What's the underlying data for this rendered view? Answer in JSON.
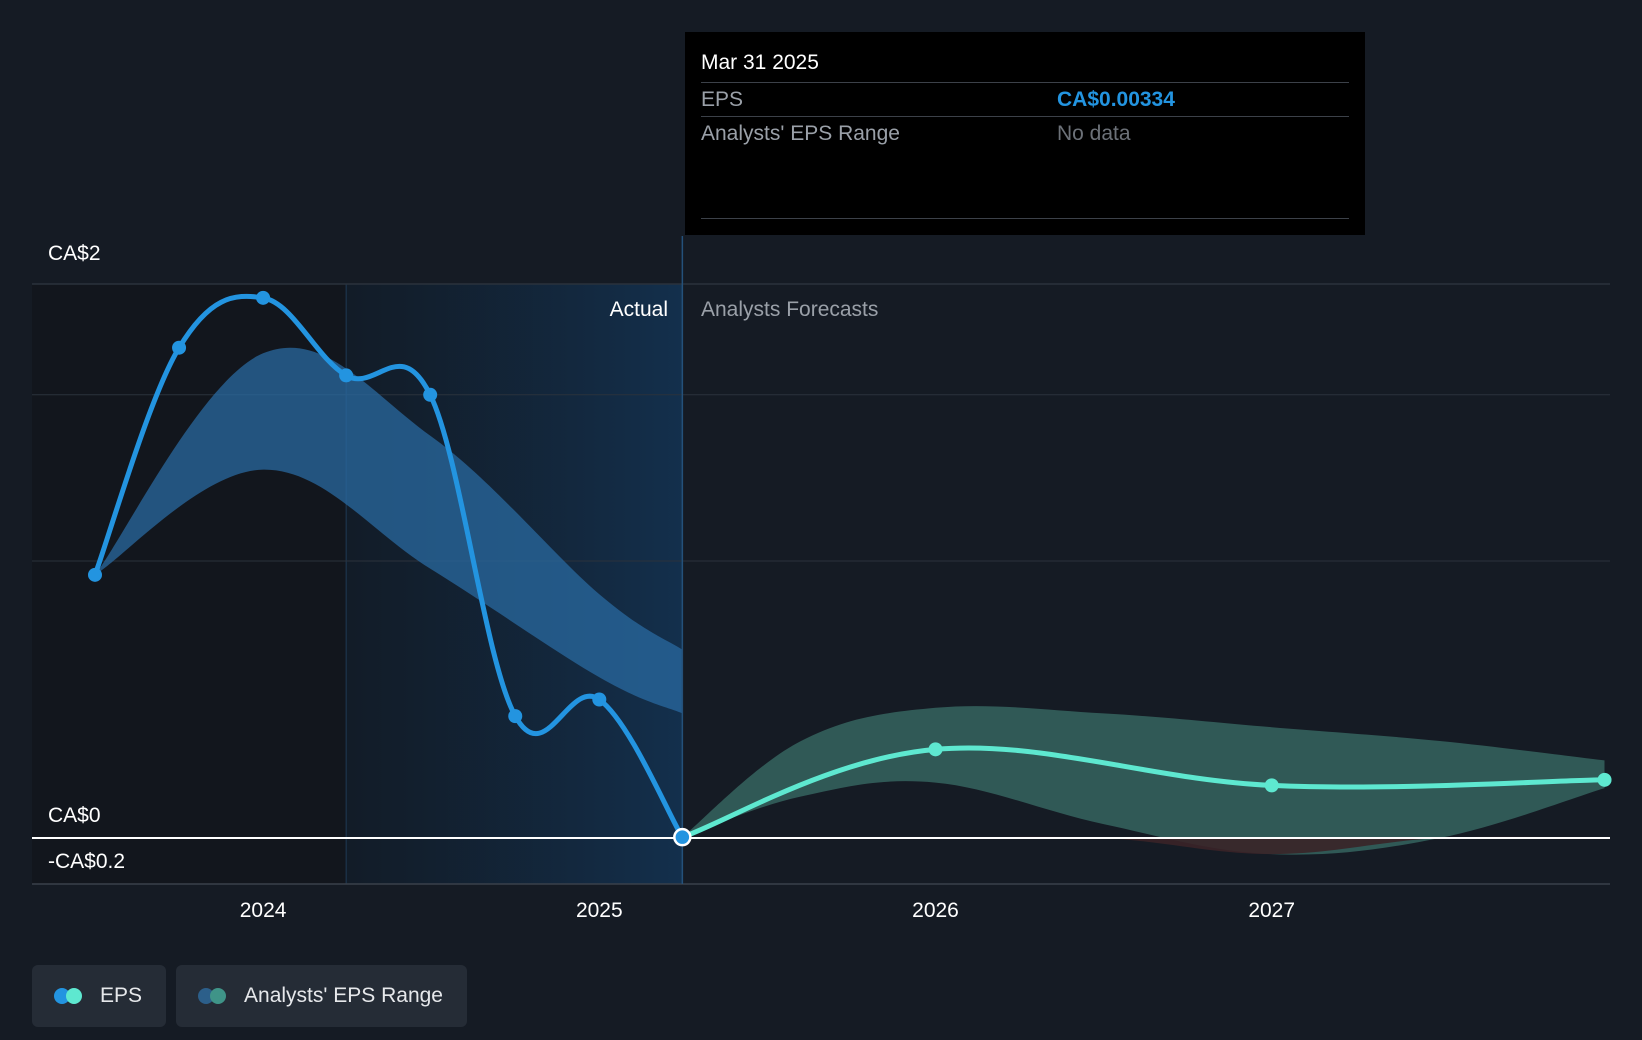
{
  "tooltip": {
    "date": "Mar 31 2025",
    "eps_label": "EPS",
    "eps_value": "CA$0.00334",
    "range_label": "Analysts' EPS Range",
    "range_value": "No data"
  },
  "sections": {
    "actual": "Actual",
    "forecast": "Analysts Forecasts"
  },
  "legend": [
    {
      "label": "EPS",
      "colors": [
        "#2394e0",
        "#5ee8d0"
      ]
    },
    {
      "label": "Analysts' EPS Range",
      "colors": [
        "#2c5f8a",
        "#3f9488"
      ]
    }
  ],
  "colors": {
    "eps_actual": "#2394e0",
    "eps_forecast": "#5ee8d0",
    "range_actual": "#2a6aa0",
    "range_forecast": "#33605c"
  },
  "chart_data": {
    "type": "line",
    "y_tick_labels": [
      "CA$2",
      "CA$0",
      "-CA$0.2"
    ],
    "y_ticks": [
      2,
      0,
      -0.2
    ],
    "ylim": [
      -0.2,
      2
    ],
    "xlim": [
      2023.5,
      2027.99
    ],
    "x_ticks": [
      2024,
      2025,
      2026,
      2027
    ],
    "x_tick_labels": [
      "2024",
      "2025",
      "2026",
      "2027"
    ],
    "actual_end": 2025.247,
    "highlight_start": 2024.247,
    "series": [
      {
        "name": "EPS",
        "segment": "actual",
        "x": [
          2023.5,
          2023.75,
          2024.0,
          2024.247,
          2024.497,
          2024.75,
          2025.0,
          2025.247
        ],
        "y": [
          0.95,
          1.77,
          1.95,
          1.67,
          1.6,
          0.44,
          0.5,
          0.003
        ]
      },
      {
        "name": "EPS",
        "segment": "forecast",
        "x": [
          2025.247,
          2026.0,
          2027.0,
          2027.99
        ],
        "y": [
          0.003,
          0.32,
          0.19,
          0.21
        ]
      }
    ],
    "range_bands": [
      {
        "segment": "actual",
        "x": [
          2023.5,
          2024.0,
          2024.5,
          2025.0,
          2025.247
        ],
        "upper": [
          0.95,
          1.75,
          1.45,
          0.88,
          0.68
        ],
        "lower": [
          0.95,
          1.33,
          0.97,
          0.58,
          0.45
        ]
      },
      {
        "segment": "forecast",
        "x": [
          2025.247,
          2025.6,
          2026.0,
          2026.5,
          2027.0,
          2027.5,
          2027.99
        ],
        "upper": [
          0.003,
          0.35,
          0.47,
          0.45,
          0.4,
          0.35,
          0.28
        ],
        "lower": [
          0.003,
          0.15,
          0.2,
          0.05,
          -0.07,
          0.0,
          0.18
        ]
      }
    ]
  }
}
